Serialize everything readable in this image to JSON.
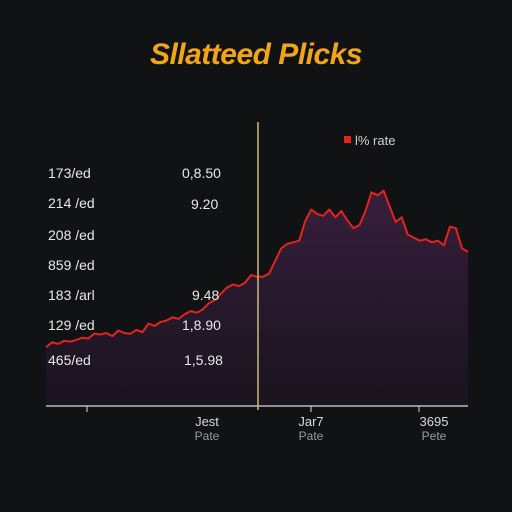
{
  "chart_data": {
    "type": "area",
    "title": "Sllatteed Plicks",
    "legend": {
      "label": "l% rate",
      "color": "#e3241b",
      "position": "top-right"
    },
    "y_tick_labels": [
      "173/ed",
      "214 /ed",
      "208 /ed",
      "859 /ed",
      "183 /arl",
      "129 /ed",
      "465/ed"
    ],
    "mid_labels": [
      "0,8.50",
      "9.20",
      "9.48",
      "1,8.90",
      "1,5.98"
    ],
    "x_tick_labels": [
      {
        "main": "Jest",
        "sub": "Pate"
      },
      {
        "main": "Jar7",
        "sub": "Pate"
      },
      {
        "main": "3695",
        "sub": "Pete"
      }
    ],
    "x": [
      0,
      1,
      2,
      3,
      4,
      5,
      6,
      7,
      8,
      9,
      10,
      11,
      12,
      13,
      14,
      15,
      16,
      17,
      18,
      19,
      20,
      21,
      22,
      23,
      24,
      25,
      26,
      27,
      28,
      29,
      30,
      31,
      32,
      33,
      34,
      35,
      36,
      37,
      38,
      39,
      40,
      41,
      42,
      43,
      44,
      45,
      46,
      47,
      48,
      49,
      50,
      51,
      52,
      53,
      54,
      55,
      56,
      57,
      58,
      59,
      60,
      61,
      62,
      63,
      64,
      65,
      66,
      67,
      68,
      69,
      70
    ],
    "values": [
      14,
      20,
      18,
      22,
      21,
      23,
      26,
      25,
      31,
      30,
      32,
      28,
      35,
      32,
      31,
      36,
      33,
      44,
      41,
      46,
      48,
      52,
      50,
      56,
      60,
      58,
      62,
      70,
      74,
      82,
      90,
      94,
      92,
      96,
      106,
      104,
      104,
      108,
      124,
      140,
      146,
      148,
      150,
      175,
      190,
      184,
      182,
      190,
      180,
      188,
      176,
      166,
      170,
      188,
      212,
      208,
      214,
      194,
      174,
      180,
      158,
      154,
      150,
      152,
      148,
      150,
      144,
      168,
      166,
      140,
      136
    ],
    "fill_color": "#2a1a2e",
    "line_color": "#e3241b",
    "grid": false
  }
}
